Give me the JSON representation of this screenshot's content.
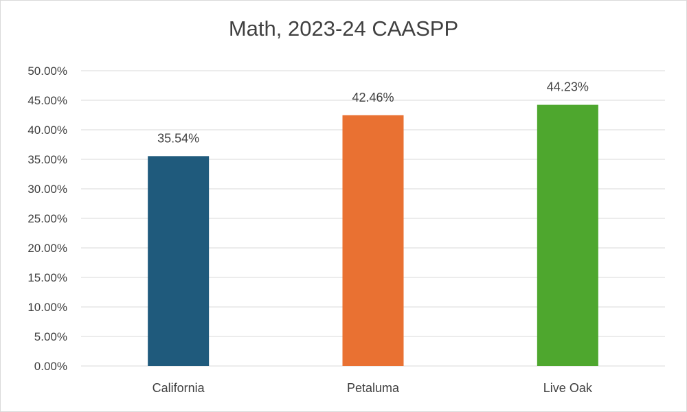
{
  "chart_data": {
    "type": "bar",
    "title": "Math, 2023-24 CAASPP",
    "xlabel": "",
    "ylabel": "",
    "categories": [
      "California",
      "Petaluma",
      "Live Oak"
    ],
    "values": [
      35.54,
      42.46,
      44.23
    ],
    "data_labels": [
      "35.54%",
      "42.46%",
      "44.23%"
    ],
    "colors": [
      "#1f5a7c",
      "#e97132",
      "#4ea72e"
    ],
    "ylim": [
      0,
      50
    ],
    "yticks": [
      {
        "value": 0,
        "label": "0.00%"
      },
      {
        "value": 5,
        "label": "5.00%"
      },
      {
        "value": 10,
        "label": "10.00%"
      },
      {
        "value": 15,
        "label": "15.00%"
      },
      {
        "value": 20,
        "label": "20.00%"
      },
      {
        "value": 25,
        "label": "25.00%"
      },
      {
        "value": 30,
        "label": "30.00%"
      },
      {
        "value": 35,
        "label": "35.00%"
      },
      {
        "value": 40,
        "label": "40.00%"
      },
      {
        "value": 45,
        "label": "45.00%"
      },
      {
        "value": 50,
        "label": "50.00%"
      }
    ],
    "grid": true,
    "legend": "none"
  }
}
